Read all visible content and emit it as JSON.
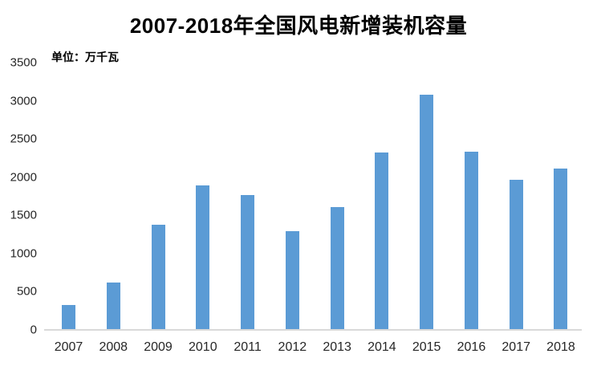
{
  "chart_data": {
    "type": "bar",
    "title": "2007-2018年全国风电新增装机容量",
    "unit_label": "单位：万千瓦",
    "categories": [
      "2007",
      "2008",
      "2009",
      "2010",
      "2011",
      "2012",
      "2013",
      "2014",
      "2015",
      "2016",
      "2017",
      "2018"
    ],
    "values": [
      330,
      625,
      1380,
      1893,
      1763,
      1296,
      1610,
      2320,
      3075,
      2337,
      1966,
      2114
    ],
    "ylabel": "",
    "xlabel": "",
    "ylim": [
      0,
      3500
    ],
    "yticks": [
      0,
      500,
      1000,
      1500,
      2000,
      2500,
      3000,
      3500
    ],
    "grid": "off",
    "legend": "none",
    "bar_color": "#5B9BD5",
    "axis_line_color": "#D9D9D9",
    "tick_text_color": "#262626",
    "title_color": "#000000"
  }
}
